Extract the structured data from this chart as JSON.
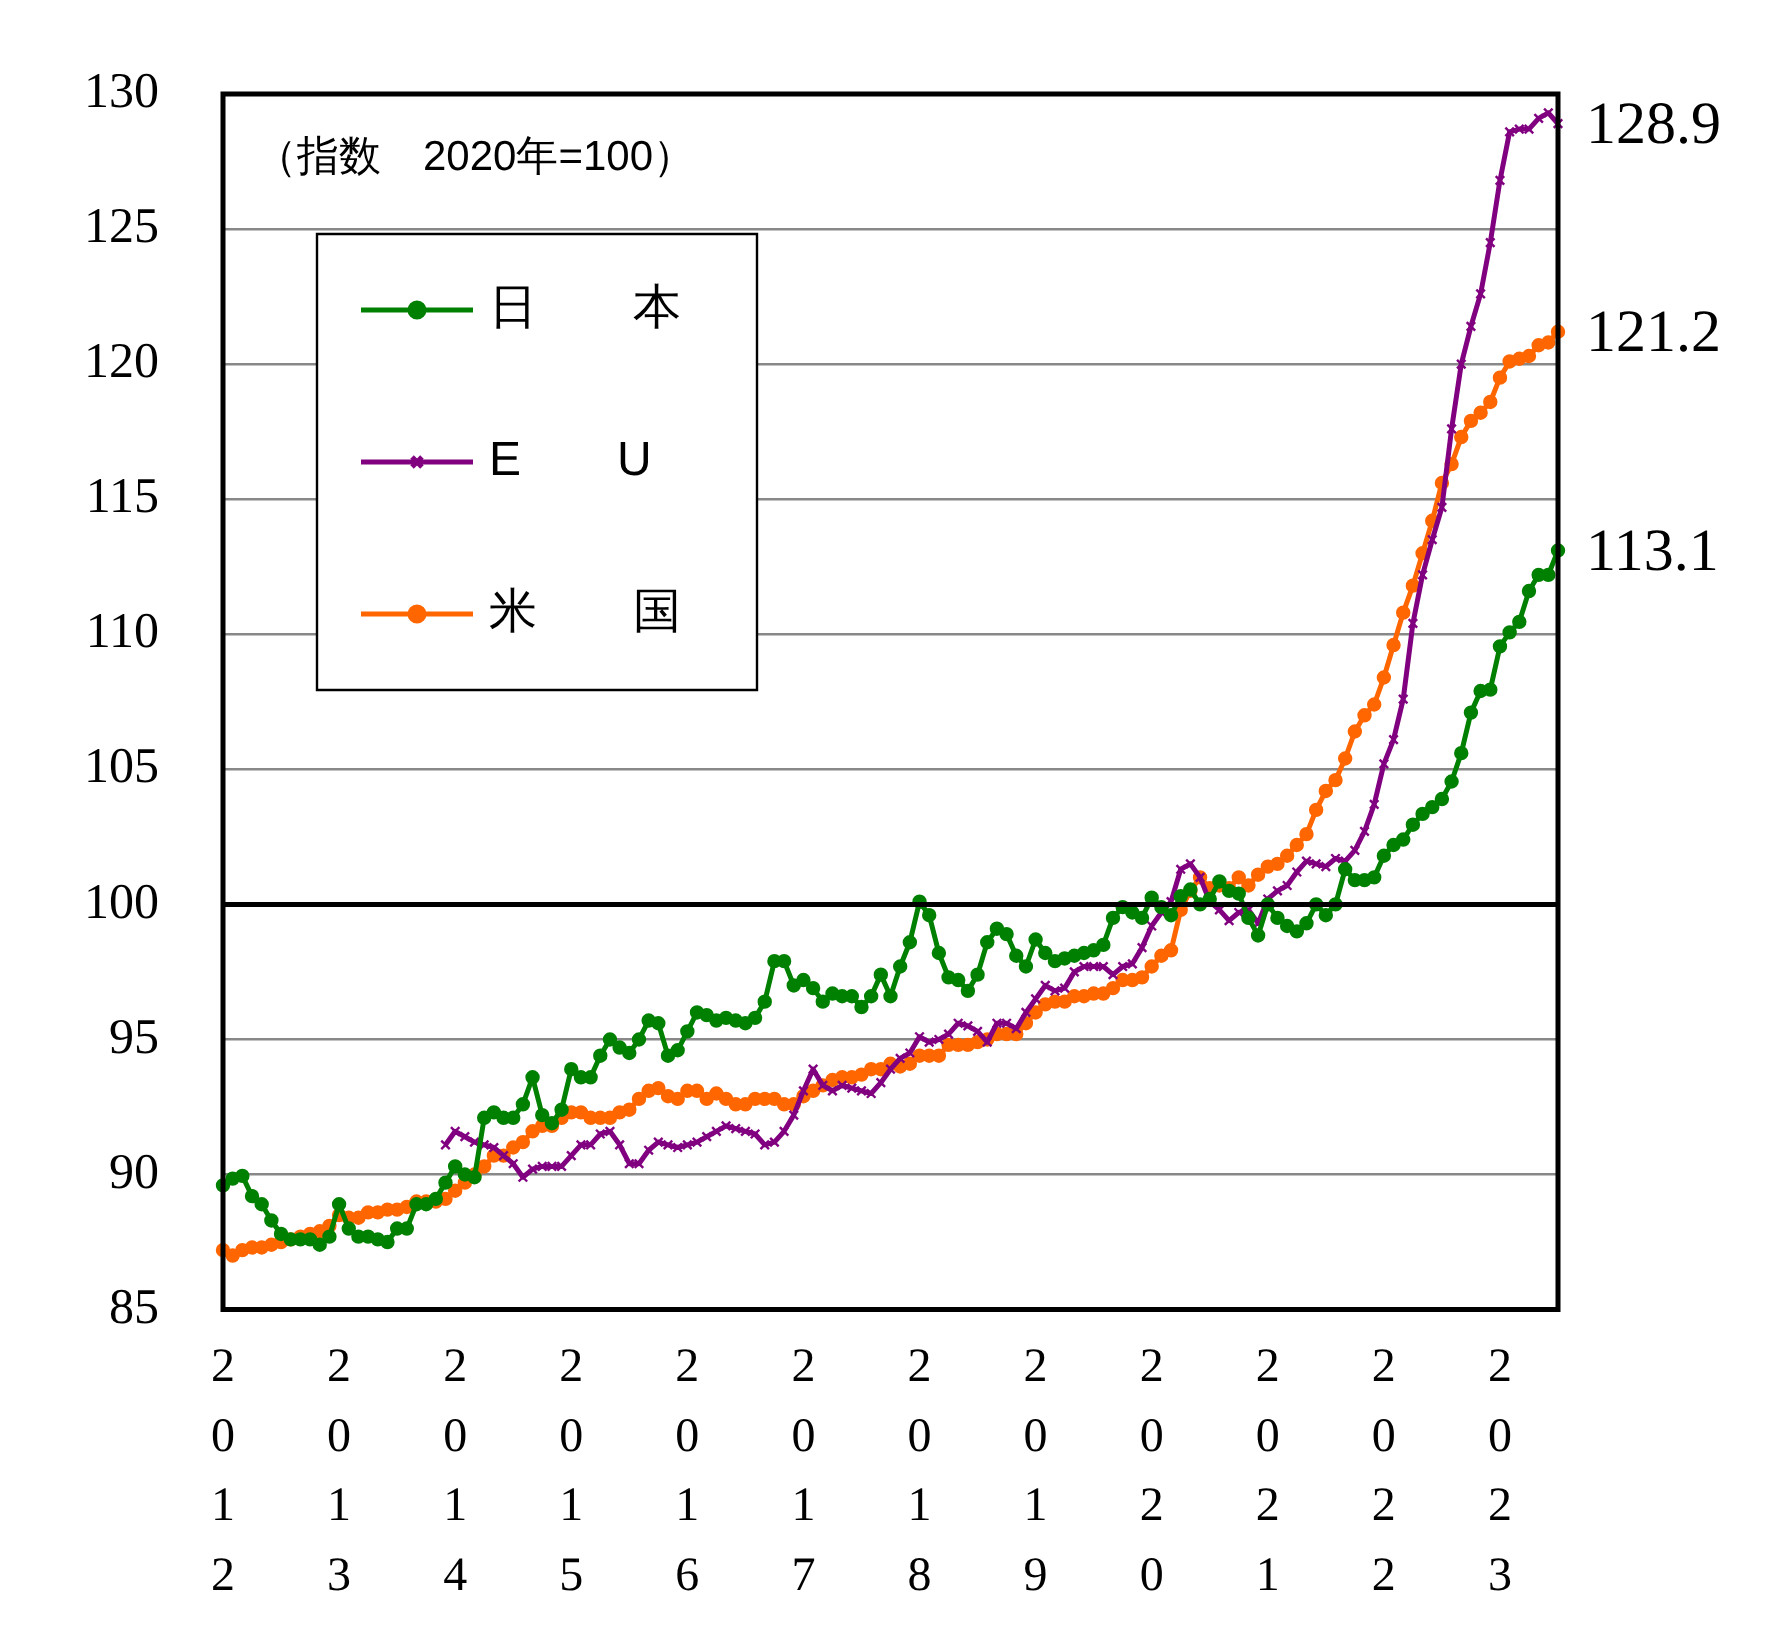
{
  "chart_data": {
    "type": "line",
    "annotations": [
      "（指数　2020年=100）"
    ],
    "categories": [
      "2012",
      null,
      null,
      null,
      null,
      null,
      null,
      null,
      null,
      null,
      null,
      null,
      "2013",
      null,
      null,
      null,
      null,
      null,
      null,
      null,
      null,
      null,
      null,
      null,
      "2014",
      null,
      null,
      null,
      null,
      null,
      null,
      null,
      null,
      null,
      null,
      null,
      "2015",
      null,
      null,
      null,
      null,
      null,
      null,
      null,
      null,
      null,
      null,
      null,
      "2016",
      null,
      null,
      null,
      null,
      null,
      null,
      null,
      null,
      null,
      null,
      null,
      "2017",
      null,
      null,
      null,
      null,
      null,
      null,
      null,
      null,
      null,
      null,
      null,
      "2018",
      null,
      null,
      null,
      null,
      null,
      null,
      null,
      null,
      null,
      null,
      null,
      "2019",
      null,
      null,
      null,
      null,
      null,
      null,
      null,
      null,
      null,
      null,
      null,
      "2020",
      null,
      null,
      null,
      null,
      null,
      null,
      null,
      null,
      null,
      null,
      null,
      "2021",
      null,
      null,
      null,
      null,
      null,
      null,
      null,
      null,
      null,
      null,
      null,
      "2022",
      null,
      null,
      null,
      null,
      null,
      null,
      null,
      null,
      null,
      null,
      null,
      "2023",
      null,
      null,
      null,
      null,
      null,
      null
    ],
    "series": [
      {
        "name": "日　　本",
        "color": "#008000",
        "marker": "circle",
        "values": [
          89.6,
          89.85,
          89.95,
          89.2,
          88.9,
          88.3,
          87.8,
          87.6,
          87.6,
          87.6,
          87.4,
          87.7,
          88.9,
          88.0,
          87.7,
          87.7,
          87.6,
          87.5,
          88.0,
          88.0,
          88.9,
          88.9,
          89.1,
          89.7,
          90.3,
          90.0,
          89.9,
          92.1,
          92.3,
          92.1,
          92.1,
          92.6,
          93.6,
          92.2,
          91.9,
          92.4,
          93.9,
          93.6,
          93.6,
          94.4,
          95.0,
          94.7,
          94.5,
          95.0,
          95.7,
          95.6,
          94.4,
          94.6,
          95.3,
          96.0,
          95.9,
          95.7,
          95.8,
          95.7,
          95.6,
          95.8,
          96.4,
          97.9,
          97.9,
          97.0,
          97.2,
          96.9,
          96.4,
          96.7,
          96.6,
          96.6,
          96.2,
          96.6,
          97.4,
          96.6,
          97.7,
          98.6,
          100.1,
          99.6,
          98.2,
          97.3,
          97.2,
          96.8,
          97.4,
          98.6,
          99.1,
          98.9,
          98.1,
          97.7,
          98.7,
          98.2,
          97.9,
          98.0,
          98.1,
          98.2,
          98.3,
          98.5,
          99.5,
          99.9,
          99.7,
          99.5,
          100.25,
          99.9,
          99.6,
          100.3,
          100.55,
          100.0,
          100.2,
          100.85,
          100.5,
          100.4,
          99.5,
          98.85,
          100.0,
          99.5,
          99.2,
          99.0,
          99.3,
          100.0,
          99.6,
          100.0,
          101.3,
          100.9,
          100.9,
          101.0,
          101.8,
          102.2,
          102.4,
          102.95,
          103.35,
          103.6,
          103.9,
          104.55,
          105.6,
          107.1,
          107.9,
          107.95,
          109.55,
          110.07,
          110.46,
          111.6,
          112.2,
          112.2,
          113.1
        ],
        "value_labels": [
          null,
          null,
          null,
          null,
          null,
          null,
          null,
          null,
          null,
          null,
          null,
          null,
          null,
          null,
          null,
          null,
          null,
          null,
          null,
          null,
          null,
          null,
          null,
          null,
          null,
          null,
          null,
          null,
          null,
          null,
          null,
          null,
          null,
          null,
          null,
          null,
          null,
          null,
          null,
          null,
          null,
          null,
          null,
          null,
          null,
          null,
          null,
          null,
          null,
          null,
          null,
          null,
          null,
          null,
          null,
          null,
          null,
          null,
          null,
          null,
          null,
          null,
          null,
          null,
          null,
          null,
          null,
          null,
          null,
          null,
          null,
          null,
          null,
          null,
          null,
          null,
          null,
          null,
          null,
          null,
          null,
          null,
          null,
          null,
          null,
          null,
          null,
          null,
          null,
          null,
          null,
          null,
          null,
          null,
          null,
          null,
          null,
          null,
          null,
          null,
          null,
          null,
          null,
          null,
          null,
          null,
          null,
          null,
          null,
          null,
          null,
          null,
          null,
          null,
          null,
          null,
          null,
          null,
          null,
          null,
          null,
          null,
          null,
          null,
          null,
          null,
          null,
          null,
          null,
          null,
          null,
          null,
          null,
          null,
          null,
          null,
          null,
          null,
          "113.1"
        ]
      },
      {
        "name": "E　　U",
        "color": "#800080",
        "marker": "cross",
        "values": [
          null,
          null,
          null,
          null,
          null,
          null,
          null,
          null,
          null,
          null,
          null,
          null,
          null,
          null,
          null,
          null,
          null,
          null,
          null,
          null,
          null,
          null,
          null,
          91.1,
          91.6,
          91.4,
          91.2,
          91.1,
          91.0,
          90.7,
          90.4,
          89.9,
          90.2,
          90.3,
          90.3,
          90.3,
          90.7,
          91.1,
          91.1,
          91.5,
          91.6,
          91.1,
          90.4,
          90.4,
          90.9,
          91.2,
          91.1,
          91.0,
          91.1,
          91.2,
          91.4,
          91.6,
          91.8,
          91.7,
          91.6,
          91.5,
          91.1,
          91.2,
          91.6,
          92.2,
          93.1,
          93.9,
          93.3,
          93.1,
          93.3,
          93.2,
          93.1,
          93.0,
          93.4,
          93.9,
          94.3,
          94.5,
          95.1,
          94.9,
          95.0,
          95.2,
          95.6,
          95.5,
          95.3,
          94.9,
          95.6,
          95.6,
          95.4,
          96.0,
          96.5,
          97.0,
          96.8,
          96.9,
          97.5,
          97.7,
          97.7,
          97.7,
          97.4,
          97.7,
          97.8,
          98.4,
          99.2,
          99.7,
          100.1,
          101.3,
          101.5,
          101.0,
          100.1,
          99.8,
          99.4,
          99.7,
          99.8,
          99.3,
          100.2,
          100.5,
          100.7,
          101.2,
          101.6,
          101.5,
          101.4,
          101.7,
          101.6,
          102.0,
          102.7,
          103.7,
          105.2,
          106.1,
          107.6,
          110.4,
          112.2,
          113.5,
          114.7,
          117.6,
          120.0,
          121.4,
          122.6,
          124.5,
          126.8,
          128.6,
          128.7,
          128.7,
          129.1,
          129.3,
          128.9
        ],
        "value_labels": [
          null,
          null,
          null,
          null,
          null,
          null,
          null,
          null,
          null,
          null,
          null,
          null,
          null,
          null,
          null,
          null,
          null,
          null,
          null,
          null,
          null,
          null,
          null,
          null,
          null,
          null,
          null,
          null,
          null,
          null,
          null,
          null,
          null,
          null,
          null,
          null,
          null,
          null,
          null,
          null,
          null,
          null,
          null,
          null,
          null,
          null,
          null,
          null,
          null,
          null,
          null,
          null,
          null,
          null,
          null,
          null,
          null,
          null,
          null,
          null,
          null,
          null,
          null,
          null,
          null,
          null,
          null,
          null,
          null,
          null,
          null,
          null,
          null,
          null,
          null,
          null,
          null,
          null,
          null,
          null,
          null,
          null,
          null,
          null,
          null,
          null,
          null,
          null,
          null,
          null,
          null,
          null,
          null,
          null,
          null,
          null,
          null,
          null,
          null,
          null,
          null,
          null,
          null,
          null,
          null,
          null,
          null,
          null,
          null,
          null,
          null,
          null,
          null,
          null,
          null,
          null,
          null,
          null,
          null,
          null,
          null,
          null,
          null,
          null,
          null,
          null,
          null,
          null,
          null,
          null,
          null,
          null,
          null,
          null,
          null,
          null,
          null,
          null,
          "128.9"
        ]
      },
      {
        "name": "米　　国",
        "color": "#ff6600",
        "marker": "circle",
        "values": [
          87.2,
          87.0,
          87.2,
          87.3,
          87.3,
          87.4,
          87.5,
          87.6,
          87.7,
          87.8,
          87.9,
          88.1,
          88.5,
          88.4,
          88.4,
          88.6,
          88.6,
          88.7,
          88.7,
          88.8,
          89.0,
          89.0,
          89.0,
          89.1,
          89.4,
          89.7,
          90.0,
          90.3,
          90.7,
          90.7,
          91.0,
          91.2,
          91.6,
          91.8,
          91.8,
          92.1,
          92.3,
          92.3,
          92.1,
          92.1,
          92.1,
          92.3,
          92.4,
          92.8,
          93.1,
          93.2,
          92.9,
          92.8,
          93.1,
          93.1,
          92.8,
          93.0,
          92.8,
          92.6,
          92.6,
          92.8,
          92.8,
          92.8,
          92.6,
          92.6,
          92.9,
          93.1,
          93.3,
          93.5,
          93.6,
          93.6,
          93.7,
          93.9,
          93.9,
          94.1,
          94.0,
          94.1,
          94.4,
          94.4,
          94.4,
          94.8,
          94.8,
          94.8,
          94.9,
          95.0,
          95.2,
          95.2,
          95.2,
          95.6,
          96.0,
          96.3,
          96.4,
          96.4,
          96.6,
          96.6,
          96.7,
          96.7,
          96.9,
          97.2,
          97.2,
          97.3,
          97.7,
          98.1,
          98.3,
          99.8,
          100.5,
          101.0,
          100.6,
          100.7,
          100.6,
          101.0,
          100.7,
          101.1,
          101.4,
          101.5,
          101.8,
          102.2,
          102.6,
          103.5,
          104.2,
          104.6,
          105.4,
          106.4,
          107.0,
          107.4,
          108.4,
          109.6,
          110.8,
          111.8,
          113.0,
          114.2,
          115.6,
          116.3,
          117.3,
          117.9,
          118.2,
          118.6,
          119.5,
          120.1,
          120.2,
          120.3,
          120.7,
          120.8,
          121.2
        ],
        "value_labels": [
          null,
          null,
          null,
          null,
          null,
          null,
          null,
          null,
          null,
          null,
          null,
          null,
          null,
          null,
          null,
          null,
          null,
          null,
          null,
          null,
          null,
          null,
          null,
          null,
          null,
          null,
          null,
          null,
          null,
          null,
          null,
          null,
          null,
          null,
          null,
          null,
          null,
          null,
          null,
          null,
          null,
          null,
          null,
          null,
          null,
          null,
          null,
          null,
          null,
          null,
          null,
          null,
          null,
          null,
          null,
          null,
          null,
          null,
          null,
          null,
          null,
          null,
          null,
          null,
          null,
          null,
          null,
          null,
          null,
          null,
          null,
          null,
          null,
          null,
          null,
          null,
          null,
          null,
          null,
          null,
          null,
          null,
          null,
          null,
          null,
          null,
          null,
          null,
          null,
          null,
          null,
          null,
          null,
          null,
          null,
          null,
          null,
          null,
          null,
          null,
          null,
          null,
          null,
          null,
          null,
          null,
          null,
          null,
          null,
          null,
          null,
          null,
          null,
          null,
          null,
          null,
          null,
          null,
          null,
          null,
          null,
          null,
          null,
          null,
          null,
          null,
          null,
          null,
          null,
          null,
          null,
          null,
          null,
          null,
          null,
          null,
          null,
          null,
          "121.2"
        ]
      }
    ],
    "ylim": [
      85,
      130
    ],
    "yticks": [
      85,
      90,
      95,
      100,
      105,
      110,
      115,
      120,
      125,
      130
    ],
    "ref_lines": [
      {
        "axis": "y",
        "value": 100,
        "color": "#000000"
      }
    ],
    "grid": "y",
    "legend": "top left",
    "line_style": "solid"
  }
}
